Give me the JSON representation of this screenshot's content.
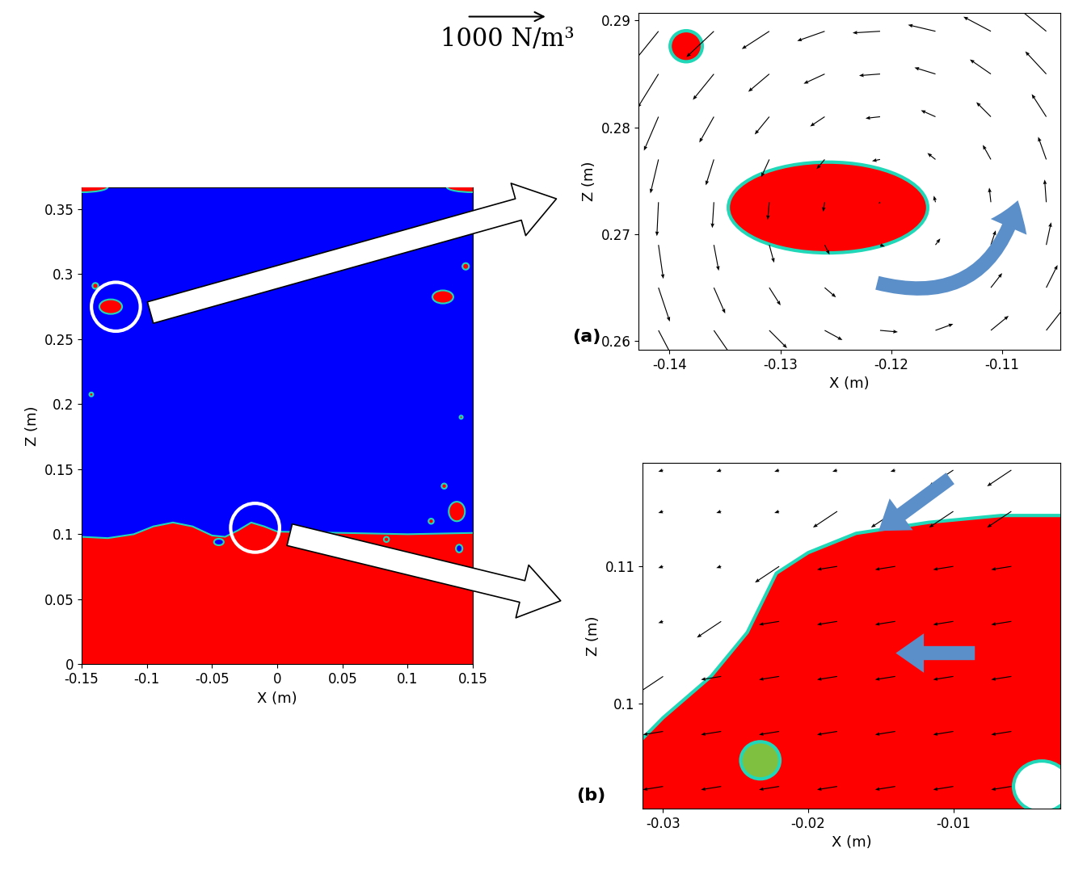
{
  "chart_data": [
    {
      "type": "contour",
      "xlabel": "X (m)",
      "ylabel": "Z (m)",
      "xlim": [
        -0.15,
        0.15
      ],
      "ylim": [
        0,
        0.367
      ],
      "xticks": [
        -0.15,
        -0.1,
        -0.05,
        0,
        0.05,
        0.1,
        0.15
      ],
      "yticks": [
        0,
        0.05,
        0.1,
        0.15,
        0.2,
        0.25,
        0.3,
        0.35
      ],
      "colors": [
        "#ff0000",
        "#0000ff"
      ],
      "interface": {
        "x": [
          -0.15,
          -0.13,
          -0.11,
          -0.095,
          -0.08,
          -0.065,
          -0.05,
          -0.04,
          -0.03,
          -0.02,
          -0.01,
          0,
          0.05,
          0.1,
          0.15
        ],
        "z": [
          0.098,
          0.097,
          0.1,
          0.106,
          0.109,
          0.106,
          0.099,
          0.098,
          0.103,
          0.109,
          0.106,
          0.102,
          0.101,
          0.1,
          0.101
        ]
      },
      "droplets": {
        "x": [
          -0.1277,
          -0.1395,
          0.127,
          0.1377,
          0.1445,
          -0.1426,
          0.118,
          0.128,
          0.141,
          0.0837,
          -0.15,
          0.15
        ],
        "z": [
          0.275,
          0.291,
          0.2825,
          0.1175,
          0.306,
          0.2075,
          0.11,
          0.137,
          0.19,
          0.096,
          0.367,
          0.367
        ],
        "width": [
          0.0174,
          0.0045,
          0.016,
          0.0124,
          0.005,
          0.003,
          0.004,
          0.004,
          0.0025,
          0.004,
          0.04,
          0.04
        ],
        "height": [
          0.0112,
          0.0045,
          0.01,
          0.015,
          0.005,
          0.003,
          0.004,
          0.004,
          0.0025,
          0.004,
          0.008,
          0.008
        ]
      },
      "bubbles": {
        "x": [
          -0.0448,
          0.1395
        ],
        "z": [
          0.094,
          0.089
        ],
        "width": [
          0.0075,
          0.005
        ],
        "height": [
          0.005,
          0.006
        ],
        "colors": [
          "#0000ff",
          "#0000ff"
        ]
      }
    },
    {
      "type": "vector",
      "label": "(a)",
      "xlabel": "X (m)",
      "ylabel": "Z (m)",
      "xlim": [
        -0.1428,
        -0.1047
      ],
      "ylim": [
        0.2592,
        0.2907
      ],
      "xticks": [
        -0.14,
        -0.13,
        -0.12,
        -0.11
      ],
      "yticks": [
        0.26,
        0.27,
        0.28,
        0.29
      ],
      "colors": [
        "#ff0000",
        "#ffffff"
      ],
      "reference_vector": {
        "value": 1000,
        "label": "1000 N/m³"
      },
      "droplets": {
        "x": [
          -0.1257,
          -0.1385
        ],
        "z": [
          0.2725,
          0.2876
        ],
        "width": [
          0.018,
          0.0029
        ],
        "height": [
          0.0085,
          0.0029
        ]
      },
      "grid_x": [
        -0.141,
        -0.136,
        -0.131,
        -0.126,
        -0.121,
        -0.116,
        -0.111,
        -0.106
      ],
      "grid_z": [
        0.261,
        0.265,
        0.269,
        0.273,
        0.277,
        0.281,
        0.285,
        0.289
      ],
      "fx": [
        [
          220,
          220,
          220,
          220,
          220,
          220,
          220,
          220
        ],
        [
          140,
          140,
          140,
          140,
          140,
          140,
          140,
          140
        ],
        [
          60,
          60,
          60,
          60,
          60,
          60,
          60,
          60
        ],
        [
          -20,
          -20,
          -20,
          -20,
          -20,
          -20,
          -20,
          -20
        ],
        [
          -100,
          -100,
          -100,
          -100,
          -100,
          -100,
          -100,
          -100
        ],
        [
          -180,
          -180,
          -180,
          -180,
          -180,
          -180,
          -180,
          -180
        ],
        [
          -260,
          -260,
          -260,
          -260,
          -260,
          -260,
          -260,
          -260
        ],
        [
          -340,
          -340,
          -340,
          -340,
          -340,
          -340,
          -340,
          -340
        ]
      ],
      "fz": [
        [
          -420,
          -320,
          -220,
          -120,
          -20,
          80,
          180,
          280
        ],
        [
          -420,
          -320,
          -220,
          -120,
          -20,
          80,
          180,
          280
        ],
        [
          -420,
          -320,
          -220,
          -120,
          -20,
          80,
          180,
          280
        ],
        [
          -420,
          -320,
          -220,
          -120,
          -20,
          80,
          180,
          280
        ],
        [
          -420,
          -320,
          -220,
          -120,
          -20,
          80,
          180,
          280
        ],
        [
          -420,
          -320,
          -220,
          -120,
          -20,
          80,
          180,
          280
        ],
        [
          -420,
          -320,
          -220,
          -120,
          -20,
          80,
          180,
          280
        ],
        [
          -420,
          -320,
          -220,
          -120,
          -20,
          80,
          180,
          280
        ]
      ]
    },
    {
      "type": "vector",
      "label": "(b)",
      "xlabel": "X (m)",
      "ylabel": "Z (m)",
      "xlim": [
        -0.0314,
        -0.0026
      ],
      "ylim": [
        0.0924,
        0.1175
      ],
      "xticks": [
        -0.03,
        -0.02,
        -0.01
      ],
      "yticks": [
        0.1,
        0.11
      ],
      "colors": [
        "#ff0000",
        "#ffffff"
      ],
      "interface": {
        "x": [
          -0.0314,
          -0.03,
          -0.0267,
          -0.0242,
          -0.0222,
          -0.02,
          -0.0167,
          -0.0117,
          -0.0067,
          -0.0026
        ],
        "z": [
          0.0975,
          0.099,
          0.102,
          0.1052,
          0.1095,
          0.111,
          0.1124,
          0.1132,
          0.1137,
          0.1137
        ]
      },
      "bubbles": {
        "x": [
          -0.0233,
          -0.0039
        ],
        "z": [
          0.0959,
          0.094
        ],
        "width": [
          0.0027,
          0.0039
        ],
        "height": [
          0.0027,
          0.0037
        ],
        "colors": [
          "#80c040",
          "#ffffff"
        ]
      },
      "grid_x": [
        -0.03,
        -0.026,
        -0.022,
        -0.018,
        -0.014,
        -0.01,
        -0.006
      ],
      "grid_z": [
        0.094,
        0.098,
        0.102,
        0.106,
        0.11,
        0.114,
        0.117
      ],
      "fx": [
        [
          -250,
          -250,
          -250,
          -250,
          -250,
          -250,
          -250
        ],
        [
          -250,
          -250,
          -250,
          -250,
          -250,
          -250,
          -250
        ],
        [
          -300,
          -250,
          -250,
          -250,
          -250,
          -250,
          -250
        ],
        [
          -60,
          -300,
          -250,
          -250,
          -250,
          -250,
          -250
        ],
        [
          -60,
          -60,
          -300,
          -250,
          -250,
          -250,
          -250
        ],
        [
          -60,
          -60,
          -60,
          -300,
          -300,
          -300,
          -300
        ],
        [
          -60,
          -60,
          -60,
          -60,
          -60,
          -300,
          -300
        ]
      ],
      "fz": [
        [
          -40,
          -40,
          -40,
          -40,
          -40,
          -40,
          -40
        ],
        [
          -40,
          -40,
          -40,
          -40,
          -40,
          -40,
          -40
        ],
        [
          -200,
          -40,
          -40,
          -40,
          -40,
          -40,
          -40
        ],
        [
          -20,
          -200,
          -40,
          -40,
          -40,
          -40,
          -40
        ],
        [
          -20,
          -20,
          -200,
          -40,
          -40,
          -40,
          -40
        ],
        [
          -20,
          -20,
          -20,
          -200,
          -200,
          -200,
          -200
        ],
        [
          -20,
          -20,
          -20,
          -20,
          -20,
          -200,
          -200
        ]
      ]
    }
  ]
}
